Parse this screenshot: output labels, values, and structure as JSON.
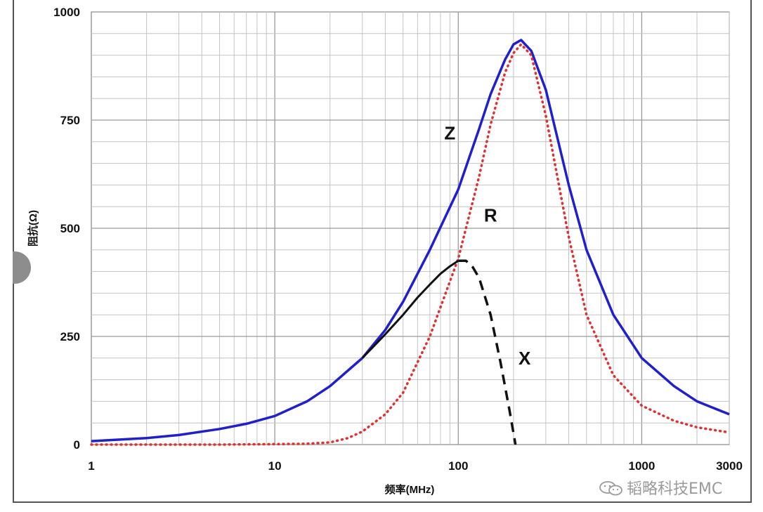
{
  "chart_data": {
    "type": "line",
    "title": "",
    "xlabel": "频率(MHz)",
    "ylabel": "阻抗(Ω)",
    "xscale": "log",
    "xlim": [
      1,
      3000
    ],
    "ylim": [
      0,
      1000
    ],
    "x_ticks": [
      1,
      10,
      100,
      1000,
      3000
    ],
    "x_tick_labels": [
      "1",
      "10",
      "100",
      "1000",
      "3000"
    ],
    "y_ticks": [
      0,
      250,
      500,
      750,
      1000
    ],
    "y_tick_labels": [
      "0",
      "250",
      "500",
      "750",
      "1000"
    ],
    "grid": true,
    "series": [
      {
        "name": "Z",
        "color": "#1f1fd0",
        "style": "solid",
        "x": [
          1,
          2,
          3,
          5,
          7,
          10,
          15,
          20,
          30,
          40,
          50,
          70,
          100,
          130,
          150,
          180,
          200,
          220,
          250,
          300,
          400,
          500,
          700,
          1000,
          1500,
          2000,
          3000
        ],
        "y": [
          8,
          15,
          22,
          36,
          48,
          66,
          100,
          135,
          200,
          265,
          330,
          450,
          590,
          730,
          810,
          890,
          925,
          935,
          910,
          820,
          600,
          450,
          300,
          200,
          135,
          100,
          70
        ]
      },
      {
        "name": "R",
        "color": "#e03030",
        "style": "dotted",
        "x": [
          1,
          5,
          10,
          15,
          20,
          25,
          30,
          40,
          50,
          70,
          100,
          130,
          150,
          180,
          200,
          220,
          250,
          300,
          400,
          500,
          700,
          1000,
          1500,
          2000,
          3000
        ],
        "y": [
          0,
          0,
          1,
          2,
          5,
          15,
          30,
          70,
          120,
          250,
          430,
          620,
          740,
          860,
          905,
          925,
          900,
          760,
          480,
          300,
          160,
          90,
          55,
          40,
          28
        ]
      },
      {
        "name": "X",
        "color": "#111111",
        "style": "solid-then-dashed",
        "x": [
          30,
          40,
          50,
          60,
          70,
          80,
          90,
          100,
          110,
          120,
          130,
          150,
          170,
          190,
          205
        ],
        "y": [
          200,
          255,
          300,
          340,
          370,
          395,
          412,
          425,
          425,
          410,
          385,
          300,
          190,
          80,
          0
        ]
      }
    ],
    "labels": [
      {
        "text": "Z",
        "x": 90,
        "y": 720
      },
      {
        "text": "R",
        "x": 150,
        "y": 530
      },
      {
        "text": "X",
        "x": 230,
        "y": 200
      }
    ]
  },
  "watermark": {
    "text": "韬略科技EMC",
    "icon": "wechat-icon"
  }
}
